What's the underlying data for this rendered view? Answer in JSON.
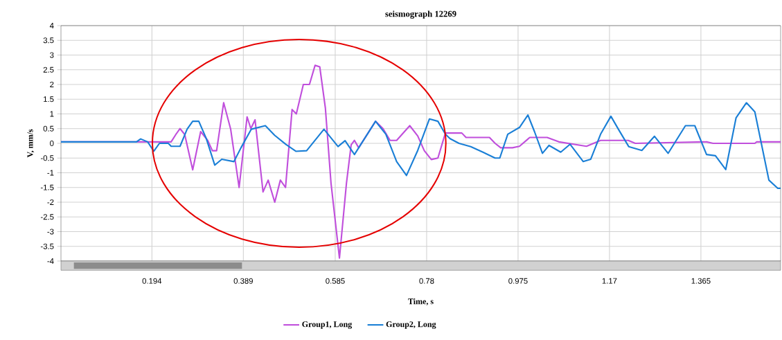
{
  "chart_data": {
    "type": "line",
    "title": "seismograph 12269",
    "xlabel": "Time, s",
    "ylabel": "V, mm/s",
    "xlim": [
      0,
      1.535
    ],
    "xticks": [
      0.194,
      0.389,
      0.585,
      0.78,
      0.975,
      1.17,
      1.365
    ],
    "ylim": [
      -4,
      4
    ],
    "yticks": [
      -4,
      -3.5,
      -3,
      -2.5,
      -2,
      -1.5,
      -1,
      -0.5,
      0,
      0.5,
      1,
      1.5,
      2,
      2.5,
      3,
      3.5,
      4
    ],
    "grid": true,
    "legend": "bottom",
    "marker": "none",
    "series": [
      {
        "name": "Group1, Long",
        "color": "#c04fdc",
        "x": [
          0,
          0.235,
          0.245,
          0.254,
          0.264,
          0.281,
          0.298,
          0.313,
          0.323,
          0.332,
          0.347,
          0.362,
          0.38,
          0.397,
          0.405,
          0.414,
          0.431,
          0.442,
          0.456,
          0.468,
          0.479,
          0.493,
          0.502,
          0.517,
          0.53,
          0.542,
          0.552,
          0.564,
          0.576,
          0.594,
          0.609,
          0.619,
          0.626,
          0.635,
          0.671,
          0.687,
          0.702,
          0.716,
          0.744,
          0.761,
          0.775,
          0.79,
          0.804,
          0.82,
          0.855,
          0.864,
          0.914,
          0.926,
          0.938,
          0.963,
          0.978,
          1.0,
          1.037,
          1.062,
          1.121,
          1.151,
          1.21,
          1.225,
          1.377,
          1.391,
          1.48,
          1.484,
          1.535
        ],
        "values": [
          0.05,
          0.05,
          0.3,
          0.5,
          0.3,
          -0.9,
          0.4,
          0.1,
          -0.25,
          -0.25,
          1.38,
          0.48,
          -1.5,
          0.9,
          0.5,
          0.8,
          -1.65,
          -1.25,
          -2.0,
          -1.25,
          -1.5,
          1.15,
          1.0,
          2.0,
          2.0,
          2.65,
          2.6,
          1.2,
          -1.35,
          -3.9,
          -1.35,
          -0.05,
          0.1,
          -0.15,
          0.75,
          0.5,
          0.1,
          0.1,
          0.6,
          0.25,
          -0.25,
          -0.55,
          -0.5,
          0.35,
          0.35,
          0.2,
          0.2,
          0,
          -0.15,
          -0.15,
          -0.1,
          0.2,
          0.2,
          0.05,
          -0.1,
          0.1,
          0.1,
          0,
          0.05,
          0,
          0,
          0.05,
          0.05
        ]
      },
      {
        "name": "Group2, Long",
        "color": "#1a7fd6",
        "x": [
          0,
          0.161,
          0.17,
          0.185,
          0.198,
          0.21,
          0.229,
          0.235,
          0.254,
          0.269,
          0.281,
          0.294,
          0.31,
          0.328,
          0.343,
          0.369,
          0.384,
          0.406,
          0.436,
          0.456,
          0.48,
          0.501,
          0.524,
          0.561,
          0.591,
          0.606,
          0.626,
          0.671,
          0.693,
          0.716,
          0.737,
          0.761,
          0.786,
          0.804,
          0.82,
          0.83,
          0.849,
          0.874,
          0.9,
          0.926,
          0.936,
          0.953,
          0.978,
          0.996,
          1.01,
          1.027,
          1.041,
          1.066,
          1.086,
          1.114,
          1.13,
          1.151,
          1.173,
          1.189,
          1.211,
          1.239,
          1.266,
          1.295,
          1.332,
          1.352,
          1.377,
          1.396,
          1.418,
          1.44,
          1.462,
          1.48,
          1.51,
          1.529,
          1.535
        ],
        "values": [
          0.05,
          0.05,
          0.15,
          0.05,
          -0.27,
          0,
          0,
          -0.1,
          -0.1,
          0.48,
          0.75,
          0.75,
          0.16,
          -0.74,
          -0.54,
          -0.62,
          -0.15,
          0.48,
          0.6,
          0.27,
          -0.04,
          -0.27,
          -0.25,
          0.48,
          -0.11,
          0.09,
          -0.38,
          0.75,
          0.31,
          -0.62,
          -1.09,
          -0.24,
          0.83,
          0.75,
          0.31,
          0.16,
          0,
          -0.11,
          -0.3,
          -0.5,
          -0.5,
          0.31,
          0.54,
          0.96,
          0.4,
          -0.34,
          -0.07,
          -0.3,
          -0.03,
          -0.62,
          -0.54,
          0.31,
          0.92,
          0.48,
          -0.11,
          -0.24,
          0.24,
          -0.34,
          0.6,
          0.6,
          -0.38,
          -0.42,
          -0.89,
          0.87,
          1.38,
          1.07,
          -1.25,
          -1.53,
          -1.53
        ]
      }
    ]
  }
}
